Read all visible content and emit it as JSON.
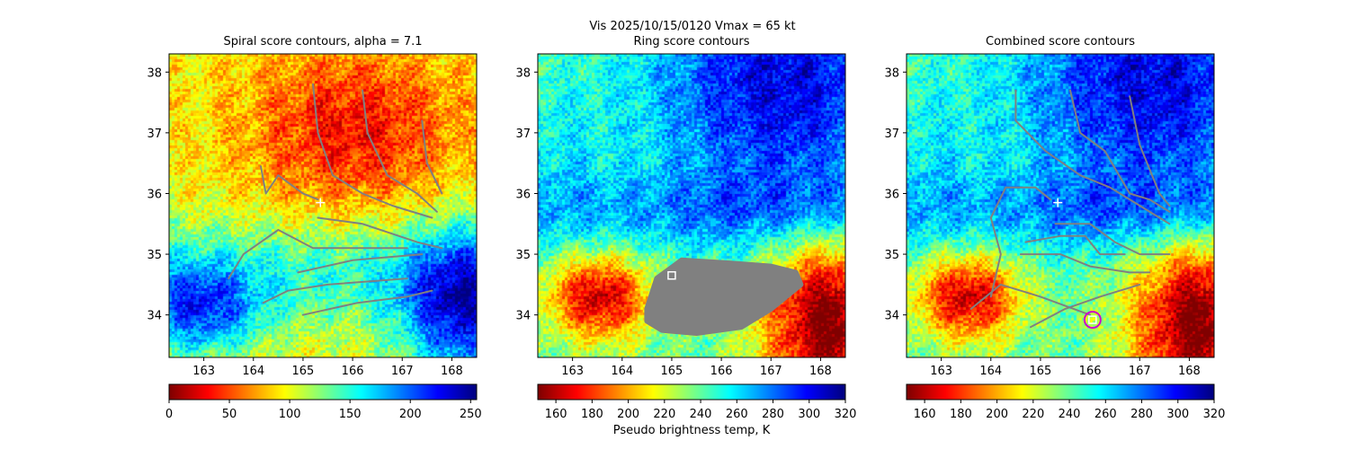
{
  "figure": {
    "suptitle_line1": "Vis  2025/10/15/0120    Vmax = 65 kt",
    "colorbar_label": "Pseudo brightness temp, K"
  },
  "chart_data": [
    {
      "type": "heatmap",
      "title": "Spiral score contours, alpha =  7.1",
      "colormap": "jet_r",
      "x_ticks": [
        163,
        164,
        165,
        166,
        167,
        168
      ],
      "y_ticks": [
        34,
        35,
        36,
        37,
        38
      ],
      "xlim": [
        162.3,
        168.5
      ],
      "ylim": [
        33.3,
        38.3
      ],
      "colorbar": {
        "range": [
          0,
          255
        ],
        "ticks": [
          0,
          50,
          100,
          150,
          200,
          250
        ]
      },
      "contours": [
        [
          [
            164.15,
            36.45
          ],
          [
            164.25,
            36.0
          ],
          [
            164.5,
            36.3
          ],
          [
            165.0,
            36.0
          ],
          [
            165.3,
            35.9
          ]
        ],
        [
          [
            165.2,
            37.8
          ],
          [
            165.3,
            37.0
          ],
          [
            165.6,
            36.3
          ],
          [
            166.2,
            36.0
          ],
          [
            166.8,
            35.8
          ],
          [
            167.6,
            35.6
          ]
        ],
        [
          [
            166.2,
            37.7
          ],
          [
            166.3,
            37.0
          ],
          [
            166.7,
            36.3
          ],
          [
            167.3,
            36.0
          ],
          [
            167.7,
            35.7
          ]
        ],
        [
          [
            167.4,
            37.2
          ],
          [
            167.5,
            36.5
          ],
          [
            167.8,
            36.0
          ]
        ],
        [
          [
            163.5,
            34.6
          ],
          [
            163.8,
            35.0
          ],
          [
            164.5,
            35.4
          ],
          [
            165.2,
            35.1
          ],
          [
            166.0,
            35.1
          ],
          [
            167.1,
            35.1
          ]
        ],
        [
          [
            165.3,
            35.6
          ],
          [
            166.2,
            35.5
          ],
          [
            167.3,
            35.2
          ],
          [
            167.8,
            35.1
          ]
        ],
        [
          [
            164.2,
            34.2
          ],
          [
            164.7,
            34.4
          ],
          [
            165.5,
            34.5
          ],
          [
            167.1,
            34.6
          ]
        ],
        [
          [
            165.0,
            34.0
          ],
          [
            166.1,
            34.2
          ],
          [
            167.1,
            34.3
          ],
          [
            167.6,
            34.4
          ]
        ],
        [
          [
            164.9,
            34.7
          ],
          [
            166.0,
            34.9
          ],
          [
            167.4,
            35.0
          ]
        ]
      ],
      "markers": [
        {
          "kind": "plus",
          "x": 165.35,
          "y": 35.85,
          "color": "#ffffff"
        }
      ]
    },
    {
      "type": "heatmap",
      "title": "Ring score contours",
      "colormap": "jet_r",
      "x_ticks": [
        163,
        164,
        165,
        166,
        167,
        168
      ],
      "y_ticks": [
        34,
        35,
        36,
        37,
        38
      ],
      "xlim": [
        162.3,
        168.5
      ],
      "ylim": [
        33.3,
        38.3
      ],
      "colorbar": {
        "range": [
          150,
          320
        ],
        "ticks": [
          160,
          180,
          200,
          220,
          240,
          260,
          280,
          300,
          320
        ]
      },
      "masked_region_color": "#808080",
      "masked_region": [
        [
          164.5,
          34.1
        ],
        [
          164.7,
          34.6
        ],
        [
          165.2,
          34.9
        ],
        [
          166.2,
          34.85
        ],
        [
          167.0,
          34.8
        ],
        [
          167.5,
          34.7
        ],
        [
          167.6,
          34.5
        ],
        [
          167.0,
          34.1
        ],
        [
          166.4,
          33.8
        ],
        [
          165.5,
          33.7
        ],
        [
          164.8,
          33.75
        ],
        [
          164.5,
          33.9
        ]
      ],
      "markers": [
        {
          "kind": "square",
          "x": 165.0,
          "y": 34.65,
          "color": "#ffffff"
        }
      ]
    },
    {
      "type": "heatmap",
      "title": "Combined score contours",
      "colormap": "jet_r",
      "x_ticks": [
        163,
        164,
        165,
        166,
        167,
        168
      ],
      "y_ticks": [
        34,
        35,
        36,
        37,
        38
      ],
      "xlim": [
        162.3,
        168.5
      ],
      "ylim": [
        33.3,
        38.3
      ],
      "colorbar": {
        "range": [
          150,
          320
        ],
        "ticks": [
          160,
          180,
          200,
          220,
          240,
          260,
          280,
          300,
          320
        ]
      },
      "contours": [
        [
          [
            164.0,
            34.3
          ],
          [
            164.2,
            35.0
          ],
          [
            164.0,
            35.6
          ],
          [
            164.3,
            36.1
          ],
          [
            164.9,
            36.1
          ],
          [
            165.2,
            35.9
          ]
        ],
        [
          [
            164.5,
            37.7
          ],
          [
            164.5,
            37.2
          ],
          [
            165.1,
            36.7
          ],
          [
            165.8,
            36.3
          ],
          [
            166.4,
            36.1
          ],
          [
            167.0,
            35.8
          ],
          [
            167.6,
            35.5
          ]
        ],
        [
          [
            165.6,
            37.7
          ],
          [
            165.8,
            37.0
          ],
          [
            166.3,
            36.7
          ],
          [
            166.8,
            36.0
          ],
          [
            167.2,
            35.9
          ],
          [
            167.6,
            35.7
          ]
        ],
        [
          [
            166.8,
            37.6
          ],
          [
            167.0,
            36.8
          ],
          [
            167.4,
            36.0
          ],
          [
            167.6,
            35.8
          ]
        ],
        [
          [
            164.7,
            35.2
          ],
          [
            165.4,
            35.3
          ],
          [
            165.9,
            35.3
          ],
          [
            166.2,
            35.0
          ],
          [
            166.7,
            35.0
          ]
        ],
        [
          [
            165.3,
            35.5
          ],
          [
            166.0,
            35.5
          ],
          [
            166.5,
            35.2
          ],
          [
            167.0,
            35.0
          ],
          [
            167.6,
            35.0
          ]
        ],
        [
          [
            164.6,
            35.0
          ],
          [
            165.4,
            35.0
          ],
          [
            166.0,
            34.8
          ],
          [
            166.8,
            34.7
          ],
          [
            167.2,
            34.7
          ]
        ],
        [
          [
            164.8,
            33.8
          ],
          [
            165.5,
            34.1
          ],
          [
            166.2,
            34.3
          ],
          [
            167.0,
            34.5
          ]
        ],
        [
          [
            163.6,
            34.1
          ],
          [
            164.2,
            34.5
          ],
          [
            165.0,
            34.3
          ],
          [
            166.0,
            34.0
          ]
        ]
      ],
      "markers": [
        {
          "kind": "plus",
          "x": 165.35,
          "y": 35.85,
          "color": "#ffffff"
        },
        {
          "kind": "circle",
          "x": 166.05,
          "y": 33.92,
          "color": "#cc00cc"
        },
        {
          "kind": "square",
          "x": 166.05,
          "y": 33.92,
          "color": "#ffffff"
        }
      ]
    }
  ]
}
